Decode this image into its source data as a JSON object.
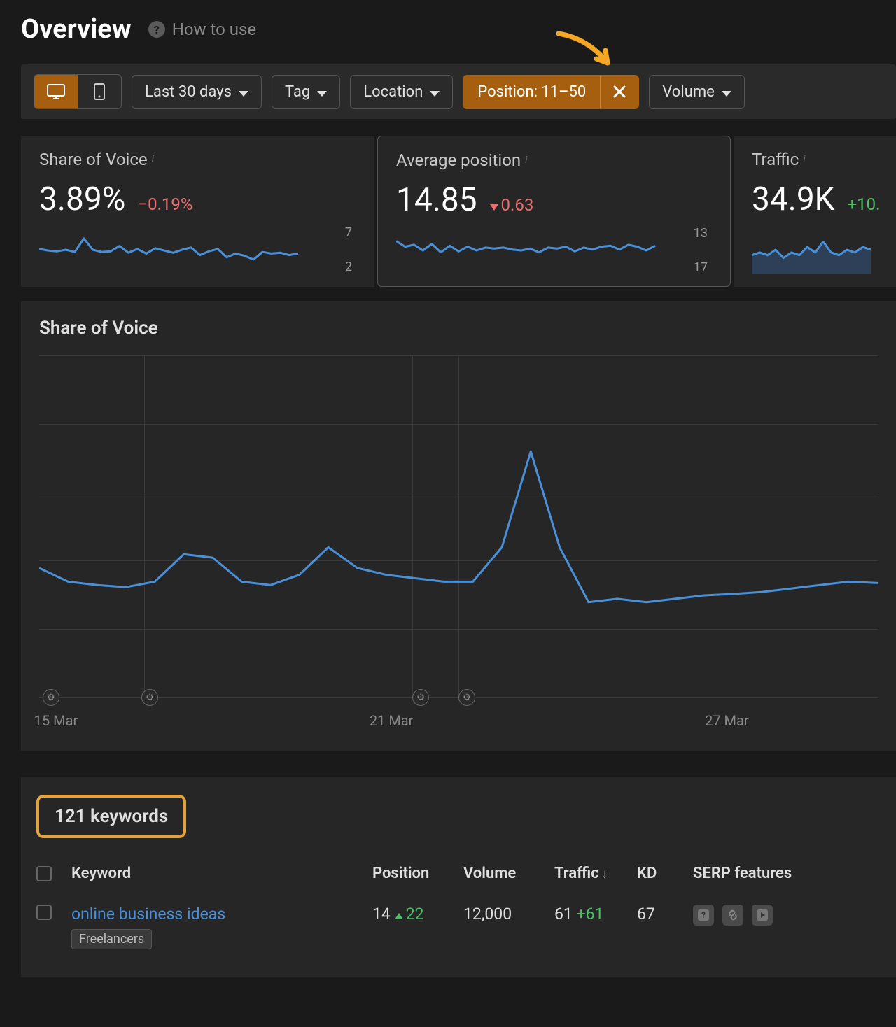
{
  "header": {
    "title": "Overview",
    "how_to_use": "How to use"
  },
  "annotation": {
    "arrow_color": "#f5a623"
  },
  "filters": {
    "date_range": "Last 30 days",
    "tag_label": "Tag",
    "location_label": "Location",
    "position_filter_label": "Position: 11–50",
    "volume_label": "Volume"
  },
  "metrics": {
    "share_of_voice": {
      "title": "Share of Voice",
      "value": "3.89%",
      "delta": "−0.19%",
      "delta_direction": "neg",
      "y_top": "7",
      "y_bot": "2",
      "spark": {
        "points": [
          4.6,
          4.4,
          4.3,
          4.5,
          4.2,
          6.0,
          4.5,
          4.2,
          4.3,
          5.0,
          4.1,
          4.6,
          4.0,
          4.7,
          4.4,
          4.1,
          4.5,
          4.8,
          3.8,
          4.3,
          4.6,
          3.5,
          4.0,
          3.7,
          3.2,
          4.2,
          4.0,
          4.1,
          3.8,
          4.0
        ],
        "ylim": [
          2,
          7
        ],
        "color": "#4a90d9",
        "fill": false
      }
    },
    "average_position": {
      "title": "Average position",
      "value": "14.85",
      "delta": "0.63",
      "delta_direction": "down",
      "y_top": "13",
      "y_bot": "17",
      "spark": {
        "points": [
          14.0,
          14.6,
          14.4,
          15.0,
          14.3,
          15.2,
          14.5,
          15.1,
          14.6,
          15.0,
          14.7,
          14.8,
          14.7,
          14.9,
          15.0,
          14.8,
          15.2,
          14.7,
          14.8,
          14.6,
          15.1,
          14.7,
          14.9,
          14.6,
          14.5,
          14.9,
          14.4,
          14.6,
          15.0,
          14.5
        ],
        "ylim": [
          13,
          17
        ],
        "color": "#4a90d9",
        "fill": false,
        "inverted": true
      }
    },
    "traffic": {
      "title": "Traffic",
      "value": "34.9K",
      "delta": "+10.",
      "delta_direction": "pos",
      "spark": {
        "points": [
          33,
          34,
          33,
          35,
          32,
          34,
          33,
          36,
          34,
          38,
          34,
          33,
          35,
          34,
          36,
          35
        ],
        "ylim": [
          28,
          42
        ],
        "color": "#4a90d9",
        "fill": true,
        "fill_color": "#2d4057"
      }
    }
  },
  "sov_chart": {
    "title": "Share of Voice",
    "type": "line",
    "x_labels": [
      "15 Mar",
      "21 Mar",
      "27 Mar"
    ],
    "x_positions_pct": [
      2,
      42,
      82
    ],
    "y_gridlines": 5,
    "v_gridlines_pct": [
      12.5,
      44.5,
      50.0
    ],
    "gear_markers_pct": [
      1.4,
      13.2,
      45.5,
      51.0
    ],
    "series": {
      "points": [
        3.9,
        3.7,
        3.65,
        3.62,
        3.7,
        4.1,
        4.05,
        3.7,
        3.65,
        3.8,
        4.2,
        3.9,
        3.8,
        3.75,
        3.7,
        3.7,
        4.2,
        5.6,
        4.2,
        3.4,
        3.45,
        3.4,
        3.45,
        3.5,
        3.52,
        3.55,
        3.6,
        3.65,
        3.7,
        3.68
      ],
      "ylim": [
        2.0,
        7.0
      ],
      "color": "#4a90d9",
      "line_width": 3
    },
    "background": "#262626",
    "grid_color": "#3a3a3a"
  },
  "keywords": {
    "count_label": "121 keywords",
    "columns": {
      "keyword": "Keyword",
      "position": "Position",
      "volume": "Volume",
      "traffic": "Traffic",
      "kd": "KD",
      "serp": "SERP features"
    },
    "sort_col": "traffic",
    "rows": [
      {
        "keyword": "online business ideas",
        "tag": "Freelancers",
        "position": "14",
        "position_change": "22",
        "position_change_dir": "up",
        "volume": "12,000",
        "traffic": "61",
        "traffic_change": "+61",
        "kd": "67",
        "serp_features": [
          "faq",
          "link",
          "video"
        ]
      }
    ]
  },
  "colors": {
    "bg": "#1a1a1a",
    "panel": "#262626",
    "accent": "#a65f0e",
    "highlight_border": "#e5a13a",
    "link": "#4a90d9",
    "neg": "#ec6f6f",
    "pos": "#4fbf67",
    "text_muted": "#8a8a8a"
  }
}
